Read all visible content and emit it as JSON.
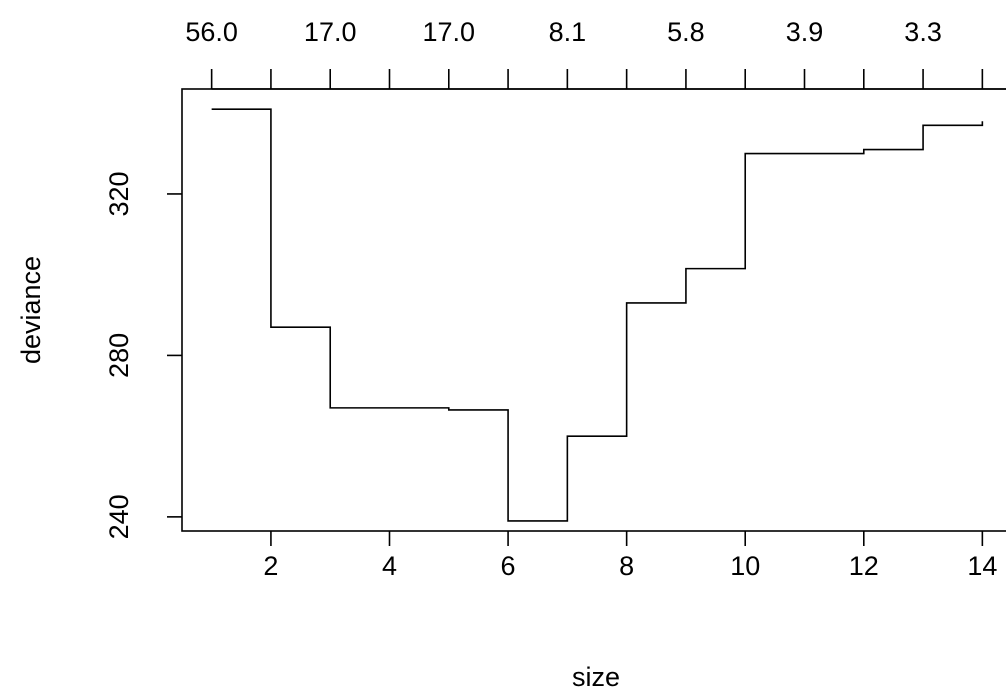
{
  "chart_data": {
    "type": "line",
    "step": true,
    "xlabel": "size",
    "ylabel": "deviance",
    "xlim": [
      0.5,
      14.5
    ],
    "ylim": [
      236.5,
      346
    ],
    "x_ticks": [
      2,
      4,
      6,
      8,
      10,
      12,
      14
    ],
    "y_ticks": [
      240,
      280,
      320
    ],
    "top_axis": {
      "tick_positions": [
        1,
        2,
        3,
        4,
        5,
        6,
        7,
        8,
        9,
        10,
        11,
        12,
        13,
        14
      ],
      "labeled_positions": [
        1,
        3,
        5,
        7,
        9,
        11,
        13
      ],
      "labels": [
        "56.0",
        "17.0",
        "17.0",
        "8.1",
        "5.8",
        "3.9",
        "3.3"
      ]
    },
    "series": [
      {
        "x": [
          1,
          2,
          3,
          4,
          5,
          6,
          7,
          8,
          9,
          10,
          11,
          12,
          13,
          14
        ],
        "y": [
          341,
          287,
          267,
          267,
          266.5,
          239,
          260,
          293,
          301.5,
          330,
          330,
          331,
          337,
          338
        ]
      }
    ]
  }
}
